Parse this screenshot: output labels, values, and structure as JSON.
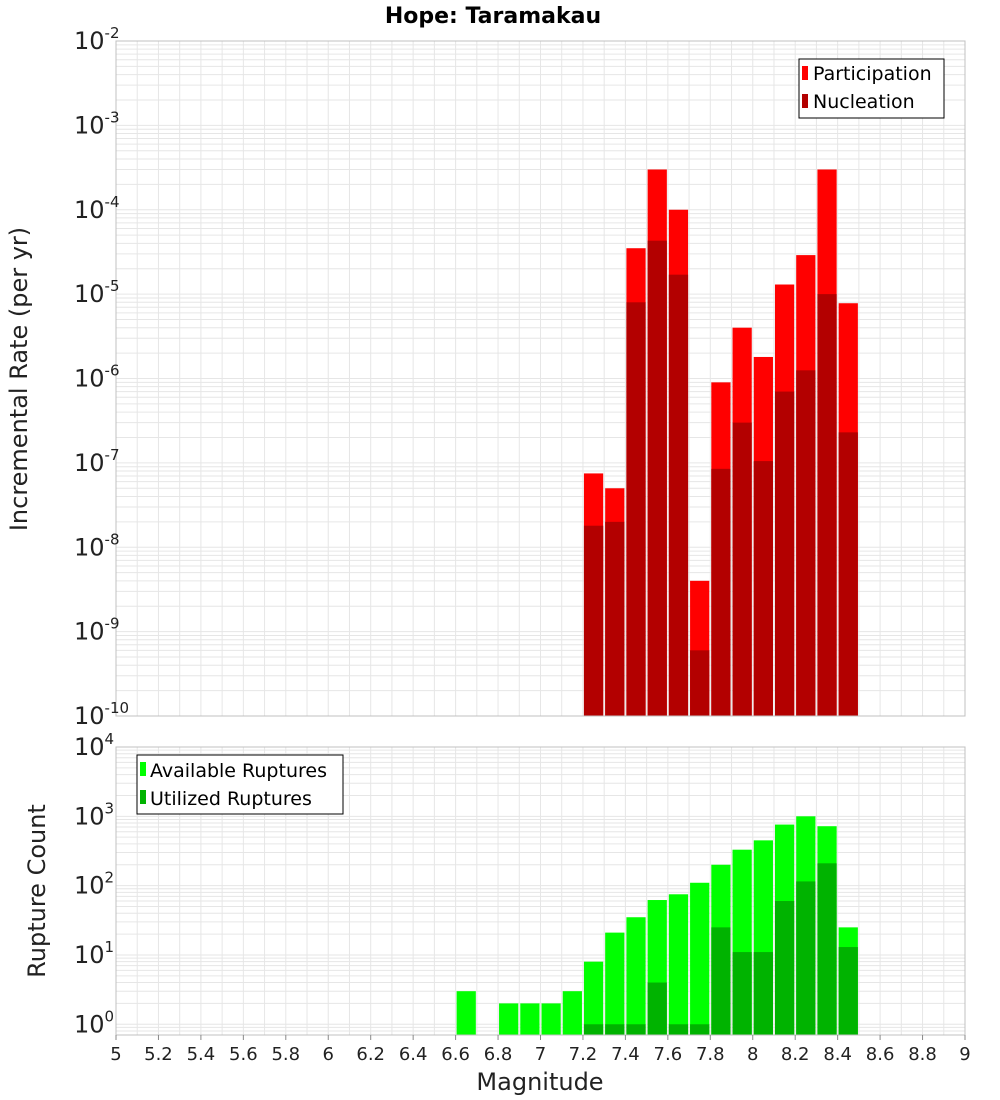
{
  "title": "Hope: Taramakau",
  "colors": {
    "participation": "#ff0000",
    "nucleation": "#b30000",
    "available": "#00ff00",
    "utilized": "#00b300",
    "grid": "#e6e6e6",
    "frame": "#c0c0c0"
  },
  "chart_data": [
    {
      "type": "bar",
      "name": "incremental-rate",
      "ylabel": "Incremental Rate (per yr)",
      "xlabel": "",
      "yscale": "log",
      "xlim": [
        5,
        9
      ],
      "ylim": [
        1e-10,
        0.01
      ],
      "y_ticks": [
        {
          "base": "10",
          "exp": "-10",
          "value": 1e-10
        },
        {
          "base": "10",
          "exp": "-9",
          "value": 1e-09
        },
        {
          "base": "10",
          "exp": "-8",
          "value": 1e-08
        },
        {
          "base": "10",
          "exp": "-7",
          "value": 1e-07
        },
        {
          "base": "10",
          "exp": "-6",
          "value": 1e-06
        },
        {
          "base": "10",
          "exp": "-5",
          "value": 1e-05
        },
        {
          "base": "10",
          "exp": "-4",
          "value": 0.0001
        },
        {
          "base": "10",
          "exp": "-3",
          "value": 0.001
        },
        {
          "base": "10",
          "exp": "-2",
          "value": 0.01
        }
      ],
      "grid": true,
      "legend_position": "top-right",
      "x": [
        7.25,
        7.35,
        7.45,
        7.55,
        7.65,
        7.75,
        7.85,
        7.95,
        8.05,
        8.15,
        8.25,
        8.35,
        8.45
      ],
      "series": [
        {
          "name": "Participation",
          "values": [
            7.5e-08,
            5e-08,
            3.5e-05,
            0.0003,
            0.0001,
            4e-09,
            9e-07,
            4e-06,
            1.8e-06,
            1.3e-05,
            2.9e-05,
            0.0003,
            7.8e-06
          ]
        },
        {
          "name": "Nucleation",
          "values": [
            1.8e-08,
            2e-08,
            8e-06,
            4.3e-05,
            1.7e-05,
            6e-10,
            8.5e-08,
            3e-07,
            1.05e-07,
            7e-07,
            1.25e-06,
            1e-05,
            2.3e-07
          ]
        }
      ]
    },
    {
      "type": "bar",
      "name": "rupture-count",
      "ylabel": "Rupture Count",
      "xlabel": "Magnitude",
      "yscale": "log",
      "xlim": [
        5,
        9
      ],
      "ylim": [
        0.7,
        10000.0
      ],
      "y_ticks": [
        {
          "base": "10",
          "exp": "0",
          "value": 1
        },
        {
          "base": "10",
          "exp": "1",
          "value": 10
        },
        {
          "base": "10",
          "exp": "2",
          "value": 100
        },
        {
          "base": "10",
          "exp": "3",
          "value": 1000
        },
        {
          "base": "10",
          "exp": "4",
          "value": 10000
        }
      ],
      "x_ticks": [
        "5",
        "5.2",
        "5.4",
        "5.6",
        "5.8",
        "6",
        "6.2",
        "6.4",
        "6.6",
        "6.8",
        "7",
        "7.2",
        "7.4",
        "7.6",
        "7.8",
        "8",
        "8.2",
        "8.4",
        "8.6",
        "8.8",
        "9"
      ],
      "grid": true,
      "legend_position": "top-left",
      "x": [
        6.65,
        6.85,
        6.95,
        7.05,
        7.15,
        7.25,
        7.35,
        7.45,
        7.55,
        7.65,
        7.75,
        7.85,
        7.95,
        8.05,
        8.15,
        8.25,
        8.35,
        8.45
      ],
      "series": [
        {
          "name": "Available Ruptures",
          "values": [
            3,
            2,
            2,
            2,
            3,
            8,
            21,
            35,
            62,
            75,
            110,
            200,
            330,
            450,
            760,
            1000,
            720,
            25
          ]
        },
        {
          "name": "Utilized Ruptures",
          "values": [
            0,
            0,
            0,
            0,
            0,
            1,
            1,
            1,
            4,
            1,
            1,
            25,
            11,
            11,
            60,
            115,
            210,
            13
          ]
        }
      ]
    }
  ]
}
